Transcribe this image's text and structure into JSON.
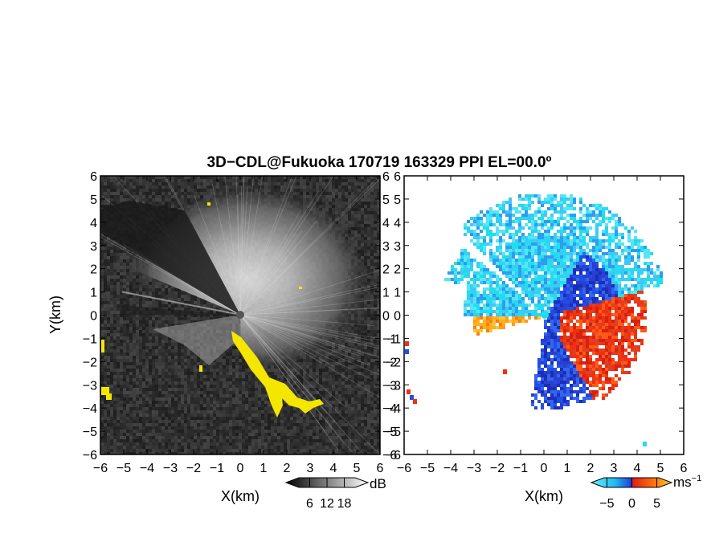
{
  "title": "3D−CDL@Fukuoka 170719 163329 PPI EL=00.0º",
  "colors": {
    "background_dark": "#2b2b2b",
    "yellow_overlay": "#f5e600",
    "vel_cyan": "#22ddee",
    "vel_blue": "#1f4fe6",
    "vel_red": "#f03010",
    "vel_orange": "#ff9c18"
  },
  "chart_data": [
    {
      "type": "heatmap",
      "name": "reflectivity",
      "xlabel": "X(km)",
      "ylabel": "Y(km)",
      "xlim": [
        -6,
        6
      ],
      "ylim": [
        -6,
        6
      ],
      "xticks": [
        "−6",
        "−5",
        "−4",
        "−3",
        "−2",
        "−1",
        "0",
        "1",
        "2",
        "3",
        "4",
        "5",
        "6"
      ],
      "yticks": [
        "6",
        "5",
        "4",
        "3",
        "2",
        "1",
        "0",
        "−1",
        "−2",
        "−3",
        "−4",
        "−5",
        "−6"
      ],
      "colorbar": {
        "unit": "dB",
        "ticks": [
          "6",
          "12",
          "18"
        ],
        "tick_values": [
          6,
          12,
          18
        ],
        "range": [
          0,
          24
        ]
      }
    },
    {
      "type": "heatmap",
      "name": "doppler_velocity",
      "xlabel": "X(km)",
      "xlim": [
        -6,
        6
      ],
      "ylim": [
        -6,
        6
      ],
      "xticks": [
        "−6",
        "−5",
        "−4",
        "−3",
        "−2",
        "−1",
        "0",
        "1",
        "2",
        "3",
        "4",
        "5",
        "6"
      ],
      "yticks": [
        "6",
        "5",
        "4",
        "3",
        "2",
        "1",
        "0",
        "−1",
        "−2",
        "−3",
        "−4",
        "−5",
        "−6"
      ],
      "colorbar": {
        "unit": "ms",
        "unit_exp": "−1",
        "ticks": [
          "−5",
          "0",
          "5"
        ],
        "tick_values": [
          -5,
          0,
          5
        ],
        "range": [
          -7,
          7
        ]
      }
    }
  ]
}
